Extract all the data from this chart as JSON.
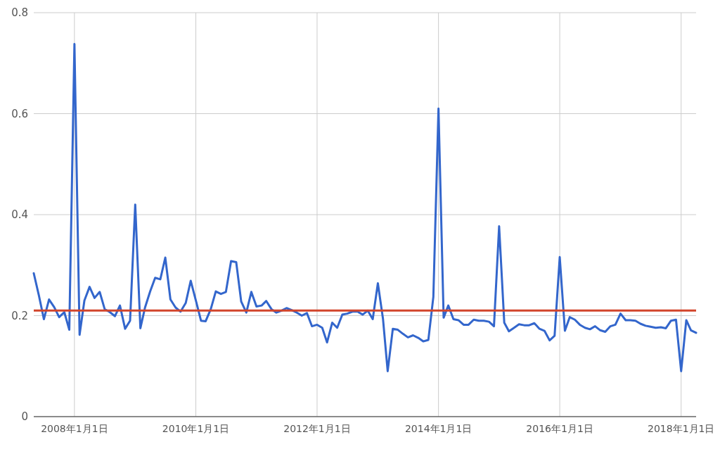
{
  "chart_data": {
    "type": "line",
    "xlim": [
      "2007-05-01",
      "2018-04-01"
    ],
    "ylim": [
      0,
      0.8
    ],
    "yticks": [
      0,
      0.2,
      0.4,
      0.6,
      0.8
    ],
    "xticks": [
      {
        "value": "2008-01-01",
        "label": "2008年1月1日"
      },
      {
        "value": "2010-01-01",
        "label": "2010年1月1日"
      },
      {
        "value": "2012-01-01",
        "label": "2012年1月1日"
      },
      {
        "value": "2014-01-01",
        "label": "2014年1月1日"
      },
      {
        "value": "2016-01-01",
        "label": "2016年1月1日"
      },
      {
        "value": "2018-01-01",
        "label": "2018年1月1日"
      }
    ],
    "grid": true,
    "color": "#3366cc",
    "ref_lines": [
      {
        "axis": "y",
        "value": 0.21,
        "color": "#d2452b"
      }
    ],
    "x": [
      "2007-05",
      "2007-06",
      "2007-07",
      "2007-08",
      "2007-09",
      "2007-10",
      "2007-11",
      "2007-12",
      "2008-01",
      "2008-02",
      "2008-03",
      "2008-04",
      "2008-05",
      "2008-06",
      "2008-07",
      "2008-08",
      "2008-09",
      "2008-10",
      "2008-11",
      "2008-12",
      "2009-01",
      "2009-02",
      "2009-03",
      "2009-04",
      "2009-05",
      "2009-06",
      "2009-07",
      "2009-08",
      "2009-09",
      "2009-10",
      "2009-11",
      "2009-12",
      "2010-01",
      "2010-02",
      "2010-03",
      "2010-04",
      "2010-05",
      "2010-06",
      "2010-07",
      "2010-08",
      "2010-09",
      "2010-10",
      "2010-11",
      "2010-12",
      "2011-01",
      "2011-02",
      "2011-03",
      "2011-04",
      "2011-05",
      "2011-06",
      "2011-07",
      "2011-08",
      "2011-09",
      "2011-10",
      "2011-11",
      "2011-12",
      "2012-01",
      "2012-02",
      "2012-03",
      "2012-04",
      "2012-05",
      "2012-06",
      "2012-07",
      "2012-08",
      "2012-09",
      "2012-10",
      "2012-11",
      "2012-12",
      "2013-01",
      "2013-02",
      "2013-03",
      "2013-04",
      "2013-05",
      "2013-06",
      "2013-07",
      "2013-08",
      "2013-09",
      "2013-10",
      "2013-11",
      "2013-12",
      "2014-01",
      "2014-02",
      "2014-03",
      "2014-04",
      "2014-05",
      "2014-06",
      "2014-07",
      "2014-08",
      "2014-09",
      "2014-10",
      "2014-11",
      "2014-12",
      "2015-01",
      "2015-02",
      "2015-03",
      "2015-04",
      "2015-05",
      "2015-06",
      "2015-07",
      "2015-08",
      "2015-09",
      "2015-10",
      "2015-11",
      "2015-12",
      "2016-01",
      "2016-02",
      "2016-03",
      "2016-04",
      "2016-05",
      "2016-06",
      "2016-07",
      "2016-08",
      "2016-09",
      "2016-10",
      "2016-11",
      "2016-12",
      "2017-01",
      "2017-02",
      "2017-03",
      "2017-04",
      "2017-05",
      "2017-06",
      "2017-07",
      "2017-08",
      "2017-09",
      "2017-10",
      "2017-11",
      "2017-12",
      "2018-01",
      "2018-02",
      "2018-03",
      "2018-04"
    ],
    "values": [
      0.284,
      0.24,
      0.193,
      0.232,
      0.217,
      0.197,
      0.207,
      0.172,
      0.738,
      0.162,
      0.23,
      0.257,
      0.235,
      0.247,
      0.213,
      0.207,
      0.199,
      0.22,
      0.174,
      0.19,
      0.42,
      0.175,
      0.216,
      0.248,
      0.275,
      0.272,
      0.315,
      0.232,
      0.216,
      0.208,
      0.225,
      0.269,
      0.23,
      0.19,
      0.189,
      0.213,
      0.248,
      0.243,
      0.247,
      0.308,
      0.306,
      0.228,
      0.206,
      0.247,
      0.218,
      0.22,
      0.229,
      0.213,
      0.206,
      0.21,
      0.215,
      0.211,
      0.206,
      0.2,
      0.205,
      0.179,
      0.182,
      0.176,
      0.147,
      0.186,
      0.176,
      0.202,
      0.204,
      0.208,
      0.208,
      0.202,
      0.21,
      0.193,
      0.264,
      0.193,
      0.09,
      0.174,
      0.172,
      0.164,
      0.157,
      0.161,
      0.156,
      0.149,
      0.152,
      0.237,
      0.61,
      0.196,
      0.22,
      0.193,
      0.191,
      0.182,
      0.182,
      0.192,
      0.19,
      0.19,
      0.188,
      0.179,
      0.377,
      0.186,
      0.169,
      0.176,
      0.183,
      0.181,
      0.181,
      0.185,
      0.174,
      0.17,
      0.151,
      0.16,
      0.316,
      0.17,
      0.197,
      0.192,
      0.182,
      0.176,
      0.173,
      0.179,
      0.171,
      0.168,
      0.179,
      0.182,
      0.204,
      0.191,
      0.191,
      0.19,
      0.184,
      0.18,
      0.178,
      0.176,
      0.177,
      0.175,
      0.19,
      0.192,
      0.09,
      0.191,
      0.171,
      0.166
    ]
  }
}
